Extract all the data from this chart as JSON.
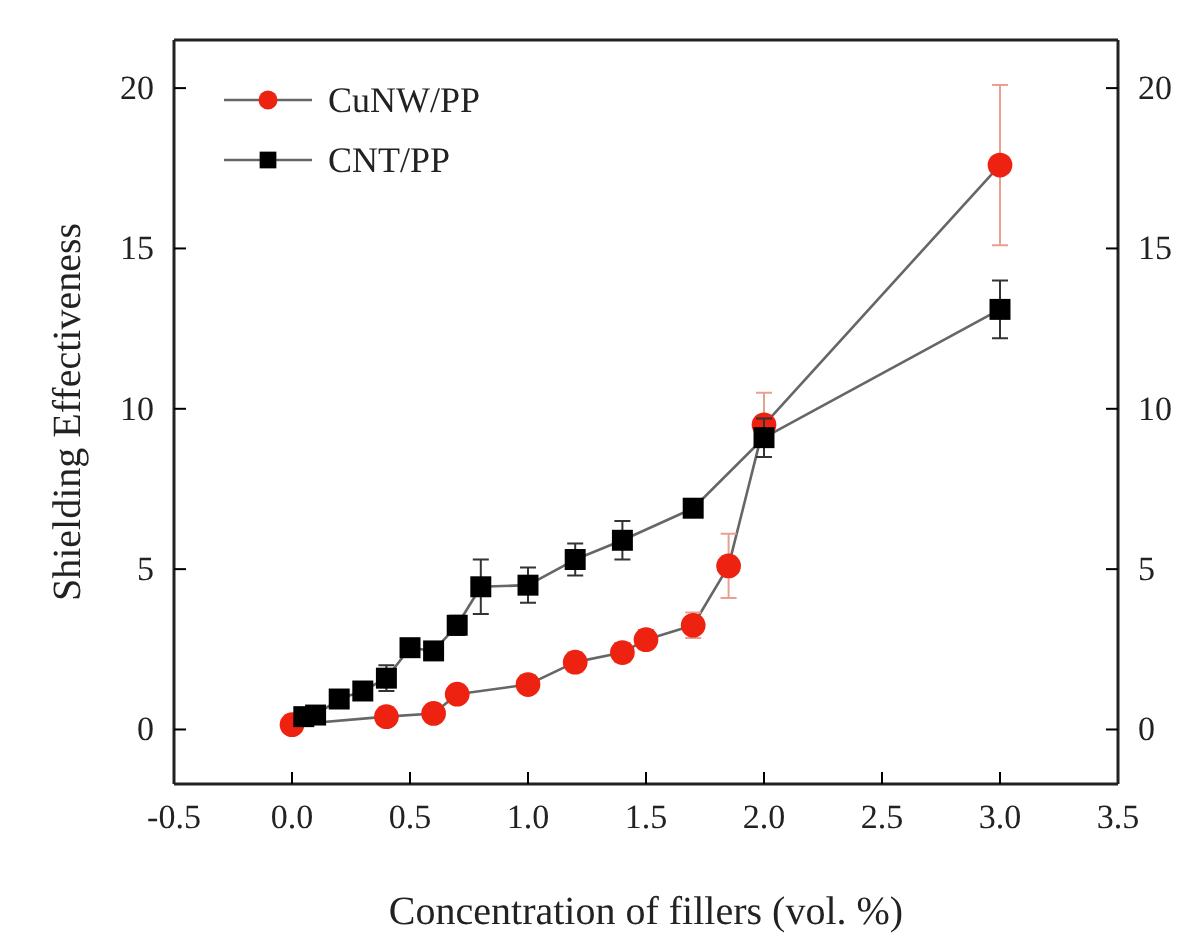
{
  "chart_data": {
    "type": "line",
    "xlabel": "Concentration of fillers (vol. %)",
    "ylabel": "Shielding Effectiveness",
    "xlim": [
      -0.5,
      3.5
    ],
    "xticks": [
      {
        "value": -0.5,
        "label": "-0.5"
      },
      {
        "value": 0,
        "label": "0.0"
      },
      {
        "value": 0.5,
        "label": "0.5"
      },
      {
        "value": 1,
        "label": "1.0"
      },
      {
        "value": 1.5,
        "label": "1.5"
      },
      {
        "value": 2,
        "label": "2.0"
      },
      {
        "value": 2.5,
        "label": "2.5"
      },
      {
        "value": 3,
        "label": "3.0"
      },
      {
        "value": 3.5,
        "label": "3.5"
      }
    ],
    "ylim": [
      -1.7,
      21.5
    ],
    "yticks": [
      0,
      5,
      10,
      15,
      20
    ],
    "y2lim": [
      -1.7,
      21.5
    ],
    "y2ticks": [
      0,
      5,
      10,
      15,
      20
    ],
    "legend": "top left",
    "grid": false,
    "series": [
      {
        "name": "CuNW/PP",
        "color": "#ee2211",
        "marker": "circle",
        "x": [
          0,
          0.4,
          0.6,
          0.7,
          1.0,
          1.2,
          1.4,
          1.5,
          1.7,
          1.85,
          2.0,
          3.0
        ],
        "values": [
          0.15,
          0.4,
          0.5,
          1.1,
          1.4,
          2.1,
          2.4,
          2.8,
          3.25,
          5.1,
          9.5,
          17.6
        ],
        "errors": [
          null,
          null,
          null,
          null,
          null,
          0.3,
          0.3,
          0.3,
          0.4,
          1.0,
          1.0,
          2.5
        ]
      },
      {
        "name": "CNT/PP",
        "color": "#000000",
        "marker": "square",
        "x": [
          0.05,
          0.1,
          0.2,
          0.3,
          0.4,
          0.5,
          0.6,
          0.7,
          0.8,
          1.0,
          1.2,
          1.4,
          1.7,
          2.0,
          3.0
        ],
        "values": [
          0.4,
          0.45,
          0.95,
          1.2,
          1.6,
          2.55,
          2.45,
          3.25,
          4.45,
          4.5,
          5.3,
          5.9,
          6.9,
          9.1,
          13.1
        ],
        "errors": [
          null,
          null,
          null,
          null,
          0.4,
          null,
          null,
          0.3,
          0.85,
          0.55,
          0.5,
          0.6,
          null,
          0.6,
          0.9
        ]
      }
    ]
  }
}
